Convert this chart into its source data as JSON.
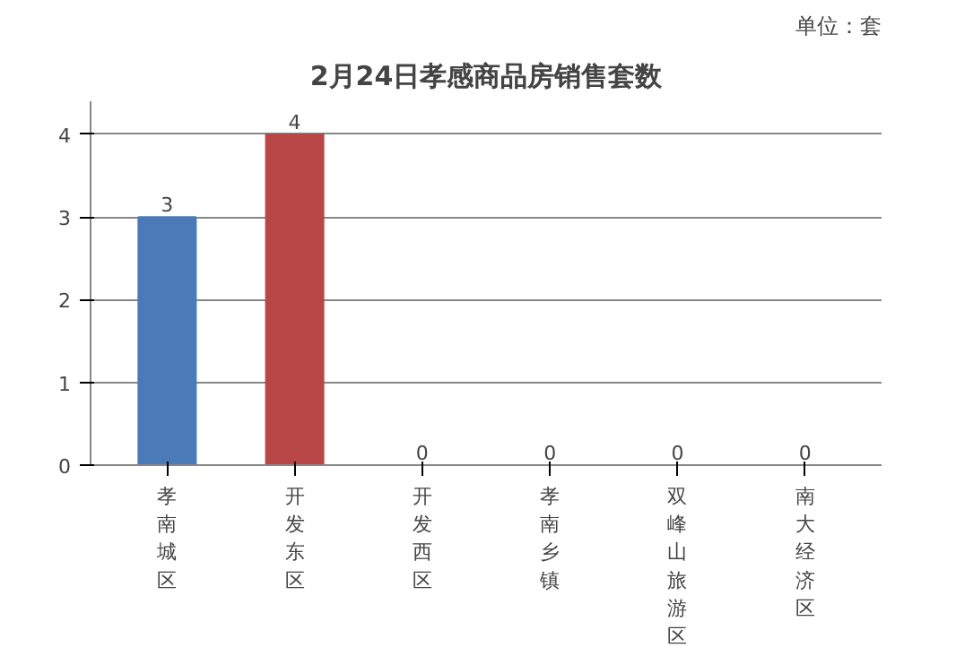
{
  "chart_data": {
    "type": "bar",
    "title": "2月24日孝感商品房销售套数",
    "annotations": [
      "单位：套"
    ],
    "categories": [
      "孝南城区",
      "开发东区",
      "开发西区",
      "孝南乡镇",
      "双峰山旅游区",
      "南大经济区"
    ],
    "values": [
      3,
      4,
      0,
      0,
      0,
      0
    ],
    "colors": [
      "#4a7ab8",
      "#b94646",
      "#7a9a3e",
      "#654d80",
      "#2f8a9e",
      "#d9782e"
    ],
    "ylim": [
      0,
      4
    ],
    "yticks": [
      0,
      1,
      2,
      3,
      4
    ],
    "grid": "y",
    "data_labels": true
  }
}
